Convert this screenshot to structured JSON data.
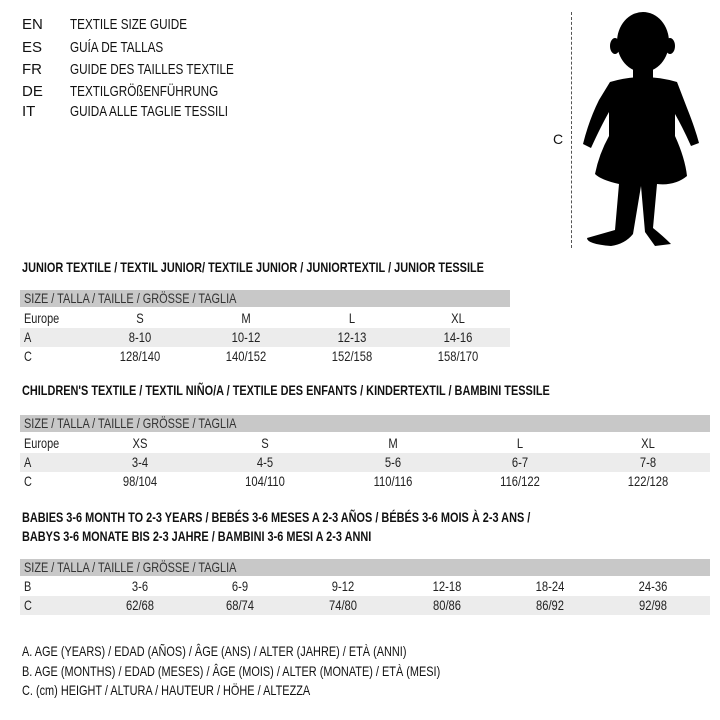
{
  "languages": [
    {
      "code": "EN",
      "text": "TEXTILE SIZE GUIDE"
    },
    {
      "code": "ES",
      "text": "GUÍA DE TALLAS"
    },
    {
      "code": "FR",
      "text": "GUIDE DES TAILLES TEXTILE"
    },
    {
      "code": "DE",
      "text": "TEXTILGRÖßENFÜHRUNG"
    },
    {
      "code": "IT",
      "text": "GUIDA ALLE TAGLIE TESSILI"
    }
  ],
  "figure": {
    "height_label": "C",
    "icon": "child-silhouette"
  },
  "size_header": "SIZE / TALLA / TAILLE / GRÖSSE / TAGLIA",
  "junior": {
    "title": "JUNIOR TEXTILE / TEXTIL JUNIOR/ TEXTILE JUNIOR / JUNIORTEXTIL / JUNIOR TESSILE",
    "rows": [
      {
        "label": "Europe",
        "values": [
          "S",
          "M",
          "L",
          "XL"
        ]
      },
      {
        "label": "A",
        "values": [
          "8-10",
          "10-12",
          "12-13",
          "14-16"
        ]
      },
      {
        "label": "C",
        "values": [
          "128/140",
          "140/152",
          "152/158",
          "158/170"
        ]
      }
    ]
  },
  "children": {
    "title": "CHILDREN'S TEXTILE / TEXTIL NIÑO/A / TEXTILE DES ENFANTS / KINDERTEXTIL / BAMBINI TESSILE",
    "rows": [
      {
        "label": "Europe",
        "values": [
          "XS",
          "S",
          "M",
          "L",
          "XL"
        ]
      },
      {
        "label": "A",
        "values": [
          "3-4",
          "4-5",
          "5-6",
          "6-7",
          "7-8"
        ]
      },
      {
        "label": "C",
        "values": [
          "98/104",
          "104/110",
          "110/116",
          "116/122",
          "122/128"
        ]
      }
    ]
  },
  "babies": {
    "title_line1": "BABIES 3-6 MONTH TO 2-3 YEARS / BEBÉS 3-6 MESES A 2-3 AÑOS / BÉBÉS 3-6 MOIS À 2-3 ANS /",
    "title_line2": "BABYS 3-6 MONATE BIS 2-3 JAHRE / BAMBINI 3-6 MESI A 2-3 ANNI",
    "rows": [
      {
        "label": "B",
        "values": [
          "3-6",
          "6-9",
          "9-12",
          "12-18",
          "18-24",
          "24-36"
        ]
      },
      {
        "label": "C",
        "values": [
          "62/68",
          "68/74",
          "74/80",
          "80/86",
          "86/92",
          "92/98"
        ]
      }
    ]
  },
  "legend": [
    "A. AGE (YEARS) / EDAD (AÑOS) / ÂGE (ANS) / ALTER (JAHRE) / ETÀ (ANNI)",
    "B. AGE (MONTHS) / EDAD (MESES) / ÂGE (MOIS) / ALTER (MONATE) / ETÀ (MESI)",
    "C. (cm) HEIGHT / ALTURA / HAUTEUR / HÖHE / ALTEZZA"
  ]
}
